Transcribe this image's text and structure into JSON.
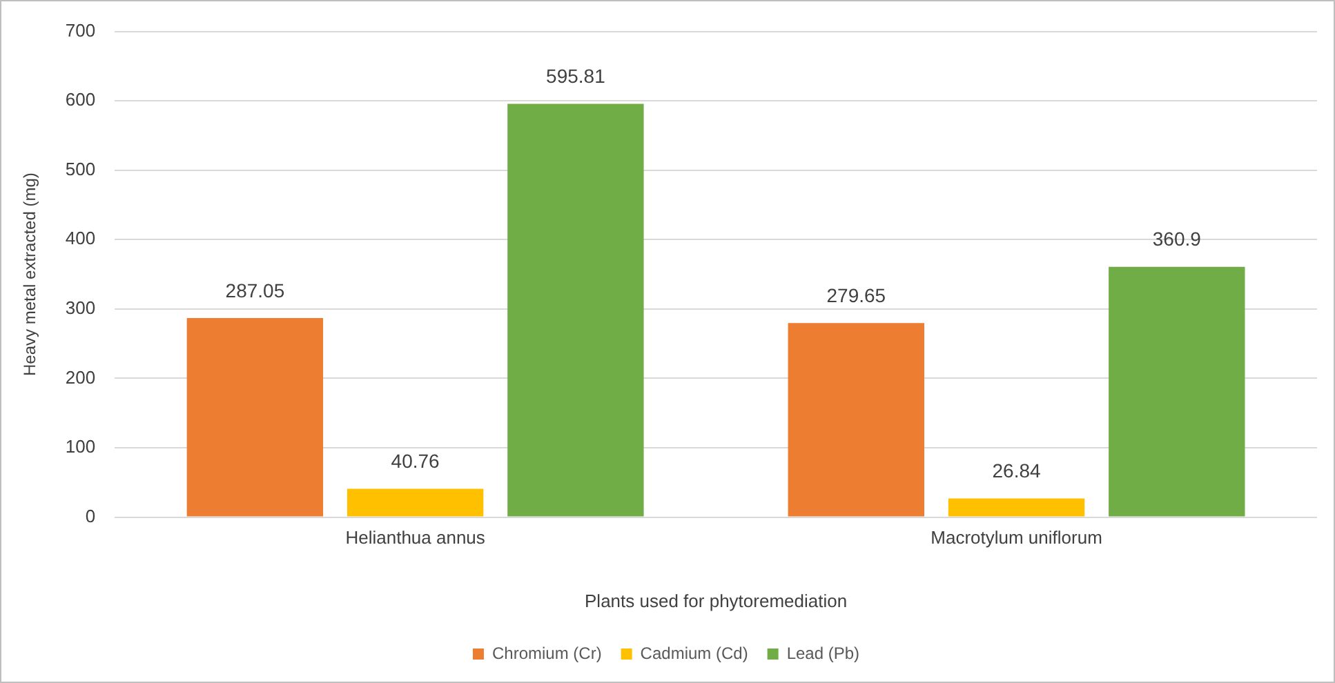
{
  "chart_data": {
    "type": "bar",
    "xlabel": "Plants used for phytoremediation",
    "ylabel": "Heavy metal extracted (mg)",
    "categories": [
      "Helianthua annus",
      "Macrotylum uniflorum"
    ],
    "series": [
      {
        "name": "Chromium (Cr)",
        "color": "#ed7d31",
        "values": [
          287.05,
          279.65
        ]
      },
      {
        "name": "Cadmium (Cd)",
        "color": "#ffc000",
        "values": [
          40.76,
          26.84
        ]
      },
      {
        "name": "Lead (Pb)",
        "color": "#70ad47",
        "values": [
          595.81,
          360.9
        ]
      }
    ],
    "ylim": [
      0,
      700
    ],
    "yticks": [
      0,
      100,
      200,
      300,
      400,
      500,
      600,
      700
    ],
    "grid": "y",
    "legend": "bottom",
    "data_labels": true
  }
}
